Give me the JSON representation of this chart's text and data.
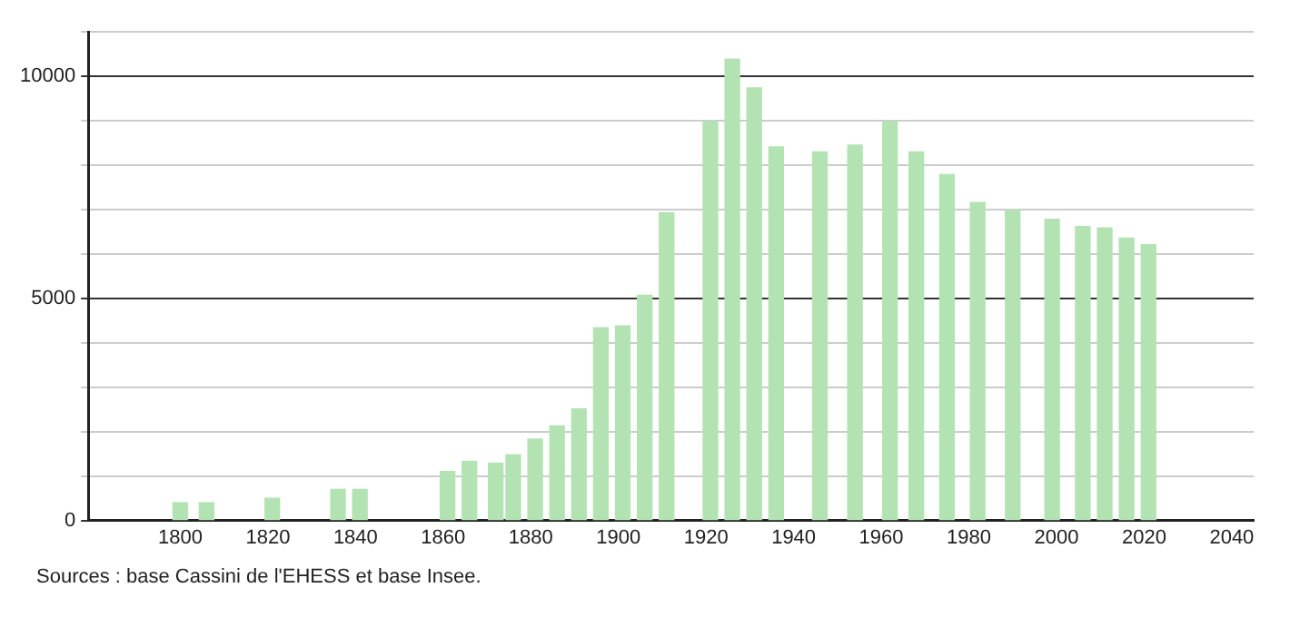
{
  "chart_data": {
    "type": "bar",
    "x": [
      1800,
      1806,
      1821,
      1836,
      1841,
      1861,
      1866,
      1872,
      1876,
      1881,
      1886,
      1891,
      1896,
      1901,
      1906,
      1911,
      1921,
      1926,
      1931,
      1936,
      1946,
      1954,
      1962,
      1968,
      1975,
      1982,
      1990,
      1999,
      2006,
      2011,
      2016,
      2021
    ],
    "values": [
      400,
      400,
      500,
      700,
      700,
      1100,
      1330,
      1290,
      1480,
      1830,
      2130,
      2510,
      4340,
      4380,
      5070,
      6930,
      8980,
      10390,
      9740,
      8410,
      8300,
      8450,
      8980,
      8300,
      7790,
      7160,
      6980,
      6780,
      6620,
      6590,
      6360,
      6210
    ],
    "color": "#b3e3b3",
    "xlim": [
      1779,
      2045
    ],
    "xticks": [
      1800,
      1820,
      1840,
      1860,
      1880,
      1900,
      1920,
      1940,
      1960,
      1980,
      2000,
      2020,
      2040
    ],
    "ylim": [
      0,
      11000
    ],
    "yticks": [
      0,
      {
        "value": 1000,
        "label": null
      },
      {
        "value": 2000,
        "label": null
      },
      {
        "value": 3000,
        "label": null
      },
      {
        "value": 4000,
        "label": null
      },
      5000,
      {
        "value": 6000,
        "label": null
      },
      {
        "value": 7000,
        "label": null
      },
      {
        "value": 8000,
        "label": null
      },
      {
        "value": 9000,
        "label": null
      },
      10000,
      {
        "value": 11000,
        "label": null
      }
    ],
    "grid": "y",
    "annotations": [
      "Sources : base Cassini de l'EHESS et base Insee."
    ]
  }
}
